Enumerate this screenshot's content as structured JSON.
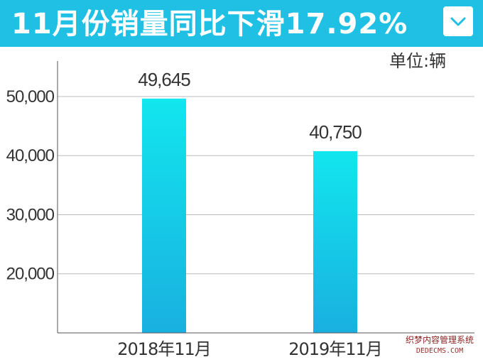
{
  "header": {
    "title": "11月份销量同比下滑17.92%",
    "unit_label": "单位:辆"
  },
  "chart_data": {
    "type": "bar",
    "title": "11月份销量同比下滑17.92%",
    "xlabel": "",
    "ylabel": "",
    "unit": "单位:辆",
    "categories": [
      "2018年11月",
      "2019年11月"
    ],
    "values": [
      49645,
      40750
    ],
    "value_labels": [
      "49,645",
      "40,750"
    ],
    "yticks": [
      20000,
      30000,
      40000,
      50000
    ],
    "ytick_labels": [
      "20,000",
      "30,000",
      "40,000",
      "50,000"
    ],
    "ylim": [
      10000,
      56000
    ],
    "grid": true,
    "legend": "none",
    "bar_gradient": [
      "#12e6ee",
      "#19b0e0"
    ]
  },
  "colors": {
    "banner": "#1fc0e4",
    "axis": "#555555",
    "grid": "#bbbbbb",
    "text": "#333333"
  },
  "icons": {
    "dropdown": "chevron-down-icon"
  },
  "watermark": {
    "line1": "织梦内容管理系统",
    "line2": "DEDECMS.COM"
  }
}
